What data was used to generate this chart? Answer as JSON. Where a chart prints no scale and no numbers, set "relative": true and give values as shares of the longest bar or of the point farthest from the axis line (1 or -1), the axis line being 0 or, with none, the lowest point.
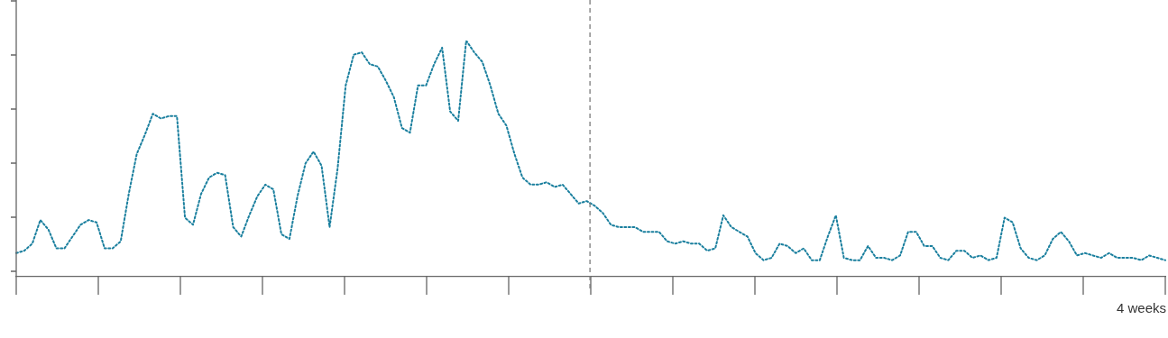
{
  "chart_data": {
    "type": "line",
    "relative": true,
    "annotations": [
      "4 weeks"
    ],
    "categories": [
      null,
      null,
      null,
      null,
      null,
      null,
      null,
      null,
      null,
      null,
      null,
      null,
      null,
      null,
      null,
      null,
      null,
      null,
      null,
      null,
      null,
      null,
      null,
      null,
      null,
      null,
      null,
      null,
      null,
      null,
      null,
      null,
      null,
      null,
      null,
      null,
      null,
      null,
      null,
      null,
      null,
      null,
      null,
      null,
      null,
      null,
      null,
      null,
      null,
      null,
      null,
      null,
      null,
      null,
      null,
      null,
      null,
      null,
      null,
      null,
      null,
      null,
      null,
      null,
      null,
      null,
      null,
      null,
      null,
      null,
      null,
      null,
      null,
      null,
      null,
      null,
      null,
      null,
      null,
      null,
      null,
      null,
      null,
      null,
      null,
      null,
      null,
      null,
      null,
      null,
      null,
      null,
      null,
      null,
      null,
      null,
      null,
      null,
      null,
      null,
      null,
      null,
      null,
      null,
      null,
      null,
      null,
      null,
      null,
      null,
      null,
      null,
      null,
      null,
      null,
      null,
      null,
      null,
      null,
      null,
      null,
      null,
      null,
      null,
      null,
      null,
      null,
      null,
      null,
      null,
      null,
      null,
      null,
      null,
      null,
      null,
      null,
      null,
      null,
      null,
      null,
      null,
      null,
      null
    ],
    "series": [
      {
        "color": "#1a7f9e",
        "values": [
          0.1,
          0.11,
          0.14,
          0.24,
          0.2,
          0.12,
          0.12,
          0.17,
          0.22,
          0.24,
          0.23,
          0.12,
          0.12,
          0.15,
          0.35,
          0.52,
          0.6,
          0.69,
          0.67,
          0.68,
          0.68,
          0.25,
          0.22,
          0.35,
          0.42,
          0.44,
          0.43,
          0.21,
          0.17,
          0.26,
          0.34,
          0.39,
          0.37,
          0.18,
          0.16,
          0.34,
          0.48,
          0.53,
          0.47,
          0.21,
          0.46,
          0.81,
          0.94,
          0.95,
          0.9,
          0.89,
          0.83,
          0.76,
          0.63,
          0.61,
          0.81,
          0.81,
          0.9,
          0.97,
          0.7,
          0.66,
          1,
          0.95,
          0.91,
          0.81,
          0.69,
          0.64,
          0.52,
          0.42,
          0.39,
          0.39,
          0.4,
          0.38,
          0.39,
          0.35,
          0.31,
          0.32,
          0.3,
          0.27,
          0.22,
          0.21,
          0.21,
          0.21,
          0.19,
          0.19,
          0.19,
          0.15,
          0.14,
          0.15,
          0.14,
          0.14,
          0.11,
          0.12,
          0.26,
          0.21,
          0.19,
          0.17,
          0.1,
          0.07,
          0.08,
          0.14,
          0.13,
          0.1,
          0.12,
          0.07,
          0.07,
          0.17,
          0.26,
          0.08,
          0.07,
          0.07,
          0.13,
          0.08,
          0.08,
          0.07,
          0.09,
          0.19,
          0.19,
          0.13,
          0.13,
          0.08,
          0.07,
          0.11,
          0.11,
          0.08,
          0.09,
          0.07,
          0.08,
          0.25,
          0.23,
          0.12,
          0.08,
          0.07,
          0.09,
          0.16,
          0.19,
          0.15,
          0.09,
          0.1,
          0.09,
          0.08,
          0.1,
          0.08,
          0.08,
          0.08,
          0.07,
          0.09,
          0.08,
          0.07
        ]
      }
    ],
    "line_style": "dotted",
    "marker": "none",
    "grid": false,
    "legend": false
  }
}
